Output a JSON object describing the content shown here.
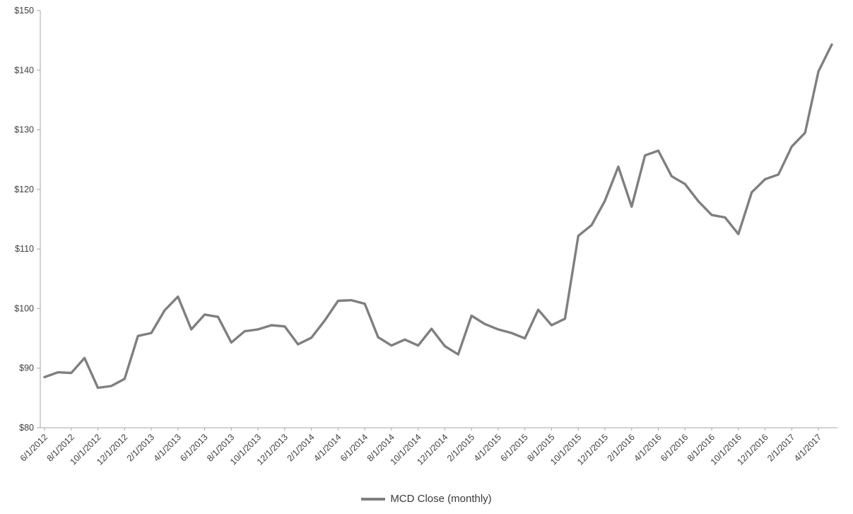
{
  "chart_data": {
    "type": "line",
    "title": "",
    "xlabel": "",
    "ylabel": "",
    "ylim": [
      80,
      150
    ],
    "ytick_step": 10,
    "ytick_prefix": "$",
    "x_label_interval": 2,
    "grid": false,
    "legend_position": "bottom",
    "line_color": "#7f7f7f",
    "axis_color": "#a6a6a6",
    "x": [
      "6/1/2012",
      "7/1/2012",
      "8/1/2012",
      "9/1/2012",
      "10/1/2012",
      "11/1/2012",
      "12/1/2012",
      "1/1/2013",
      "2/1/2013",
      "3/1/2013",
      "4/1/2013",
      "5/1/2013",
      "6/1/2013",
      "7/1/2013",
      "8/1/2013",
      "9/1/2013",
      "10/1/2013",
      "11/1/2013",
      "12/1/2013",
      "1/1/2014",
      "2/1/2014",
      "3/1/2014",
      "4/1/2014",
      "5/1/2014",
      "6/1/2014",
      "7/1/2014",
      "8/1/2014",
      "9/1/2014",
      "10/1/2014",
      "11/1/2014",
      "12/1/2014",
      "1/1/2015",
      "2/1/2015",
      "3/1/2015",
      "4/1/2015",
      "5/1/2015",
      "6/1/2015",
      "7/1/2015",
      "8/1/2015",
      "9/1/2015",
      "10/1/2015",
      "11/1/2015",
      "12/1/2015",
      "1/1/2016",
      "2/1/2016",
      "3/1/2016",
      "4/1/2016",
      "5/1/2016",
      "6/1/2016",
      "7/1/2016",
      "8/1/2016",
      "9/1/2016",
      "10/1/2016",
      "11/1/2016",
      "12/1/2016",
      "1/1/2017",
      "2/1/2017",
      "3/1/2017",
      "4/1/2017",
      "5/1/2017"
    ],
    "series": [
      {
        "name": "MCD Close (monthly)",
        "values": [
          88.5,
          89.3,
          89.2,
          91.7,
          86.7,
          87.0,
          88.2,
          95.4,
          95.9,
          99.7,
          102.0,
          96.5,
          99.0,
          98.6,
          94.3,
          96.2,
          96.5,
          97.2,
          97.0,
          94.0,
          95.1,
          98.0,
          101.3,
          101.4,
          100.8,
          95.2,
          93.8,
          94.8,
          93.8,
          96.6,
          93.7,
          92.3,
          98.8,
          97.4,
          96.5,
          95.9,
          95.0,
          99.8,
          97.2,
          98.3,
          112.2,
          114.0,
          118.1,
          123.8,
          117.1,
          125.7,
          126.5,
          122.2,
          120.9,
          118.0,
          115.7,
          115.3,
          112.5,
          119.5,
          121.7,
          122.5,
          127.2,
          129.5,
          139.8,
          144.3
        ]
      }
    ]
  }
}
